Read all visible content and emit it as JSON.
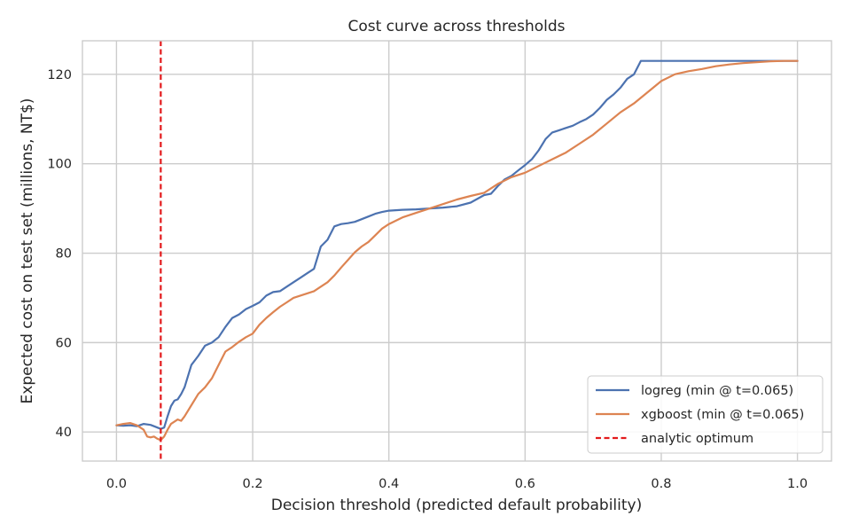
{
  "chart_data": {
    "type": "line",
    "title": "Cost curve across thresholds",
    "xlabel": "Decision threshold (predicted default probability)",
    "ylabel": "Expected cost on test set (millions, NT$)",
    "xlim": [
      -0.05,
      1.05
    ],
    "ylim": [
      33.5,
      127.5
    ],
    "xticks": [
      0.0,
      0.2,
      0.4,
      0.6,
      0.8,
      1.0
    ],
    "xtick_labels": [
      "0.0",
      "0.2",
      "0.4",
      "0.6",
      "0.8",
      "1.0"
    ],
    "yticks": [
      40,
      60,
      80,
      100,
      120
    ],
    "ytick_labels": [
      "40",
      "60",
      "80",
      "100",
      "120"
    ],
    "grid": true,
    "legend_position": "lower-right",
    "series": [
      {
        "name": "logreg (min @ t=0.065)",
        "color": "#4c72b0",
        "style": "solid",
        "x": [
          0.0,
          0.01,
          0.02,
          0.03,
          0.04,
          0.05,
          0.055,
          0.06,
          0.065,
          0.07,
          0.075,
          0.08,
          0.085,
          0.09,
          0.095,
          0.1,
          0.11,
          0.12,
          0.13,
          0.14,
          0.15,
          0.16,
          0.17,
          0.18,
          0.19,
          0.2,
          0.21,
          0.22,
          0.23,
          0.24,
          0.25,
          0.26,
          0.27,
          0.28,
          0.29,
          0.3,
          0.31,
          0.32,
          0.33,
          0.34,
          0.35,
          0.36,
          0.37,
          0.38,
          0.39,
          0.4,
          0.42,
          0.44,
          0.46,
          0.48,
          0.5,
          0.52,
          0.54,
          0.55,
          0.56,
          0.57,
          0.58,
          0.59,
          0.6,
          0.61,
          0.62,
          0.63,
          0.64,
          0.65,
          0.66,
          0.67,
          0.68,
          0.69,
          0.7,
          0.71,
          0.72,
          0.73,
          0.74,
          0.75,
          0.76,
          0.77,
          0.78,
          0.8,
          0.85,
          0.9,
          0.95,
          1.0
        ],
        "y": [
          41.5,
          41.4,
          41.5,
          41.3,
          41.8,
          41.6,
          41.3,
          41.0,
          40.7,
          41.0,
          43.5,
          45.8,
          47.0,
          47.3,
          48.5,
          50.0,
          55.0,
          57.0,
          59.3,
          60.0,
          61.2,
          63.5,
          65.5,
          66.3,
          67.5,
          68.2,
          69.0,
          70.5,
          71.3,
          71.5,
          72.5,
          73.5,
          74.5,
          75.5,
          76.5,
          81.5,
          83.0,
          86.0,
          86.5,
          86.7,
          87.0,
          87.6,
          88.2,
          88.8,
          89.2,
          89.5,
          89.7,
          89.8,
          90.0,
          90.2,
          90.5,
          91.3,
          93.0,
          93.3,
          95.0,
          96.5,
          97.3,
          98.5,
          99.7,
          101.0,
          103.0,
          105.5,
          107.0,
          107.5,
          108.0,
          108.5,
          109.3,
          110.0,
          111.0,
          112.5,
          114.3,
          115.5,
          117.0,
          119.0,
          120.0,
          123.0,
          123.0,
          123.0,
          123.0,
          123.0,
          123.0,
          123.0
        ]
      },
      {
        "name": "xgboost (min @ t=0.065)",
        "color": "#dd8452",
        "style": "solid",
        "x": [
          0.0,
          0.01,
          0.02,
          0.03,
          0.04,
          0.045,
          0.05,
          0.055,
          0.06,
          0.065,
          0.07,
          0.075,
          0.08,
          0.085,
          0.09,
          0.095,
          0.1,
          0.11,
          0.12,
          0.13,
          0.14,
          0.15,
          0.16,
          0.17,
          0.18,
          0.19,
          0.2,
          0.21,
          0.22,
          0.23,
          0.24,
          0.25,
          0.26,
          0.27,
          0.28,
          0.29,
          0.3,
          0.31,
          0.32,
          0.33,
          0.34,
          0.35,
          0.36,
          0.37,
          0.38,
          0.39,
          0.4,
          0.42,
          0.44,
          0.46,
          0.48,
          0.5,
          0.52,
          0.54,
          0.56,
          0.58,
          0.6,
          0.62,
          0.64,
          0.66,
          0.68,
          0.7,
          0.72,
          0.74,
          0.76,
          0.78,
          0.8,
          0.82,
          0.84,
          0.86,
          0.88,
          0.9,
          0.92,
          0.94,
          0.96,
          0.98,
          1.0
        ],
        "y": [
          41.5,
          41.8,
          42.0,
          41.5,
          40.5,
          39.0,
          38.8,
          39.0,
          38.5,
          38.2,
          39.0,
          40.5,
          41.8,
          42.3,
          42.8,
          42.5,
          43.5,
          46.0,
          48.5,
          50.0,
          52.0,
          55.0,
          58.0,
          59.0,
          60.2,
          61.2,
          62.0,
          64.0,
          65.5,
          66.8,
          68.0,
          69.0,
          70.0,
          70.5,
          71.0,
          71.5,
          72.5,
          73.5,
          75.0,
          76.8,
          78.5,
          80.2,
          81.5,
          82.5,
          84.0,
          85.5,
          86.5,
          88.0,
          89.0,
          90.0,
          91.0,
          92.0,
          92.8,
          93.5,
          95.5,
          97.0,
          98.0,
          99.5,
          101.0,
          102.5,
          104.5,
          106.5,
          109.0,
          111.5,
          113.5,
          116.0,
          118.5,
          120.0,
          120.7,
          121.2,
          121.8,
          122.2,
          122.5,
          122.7,
          122.9,
          123.0,
          123.0
        ]
      },
      {
        "name": "analytic optimum",
        "color": "#e31a1c",
        "style": "dashed",
        "vline_x": 0.065
      }
    ]
  }
}
